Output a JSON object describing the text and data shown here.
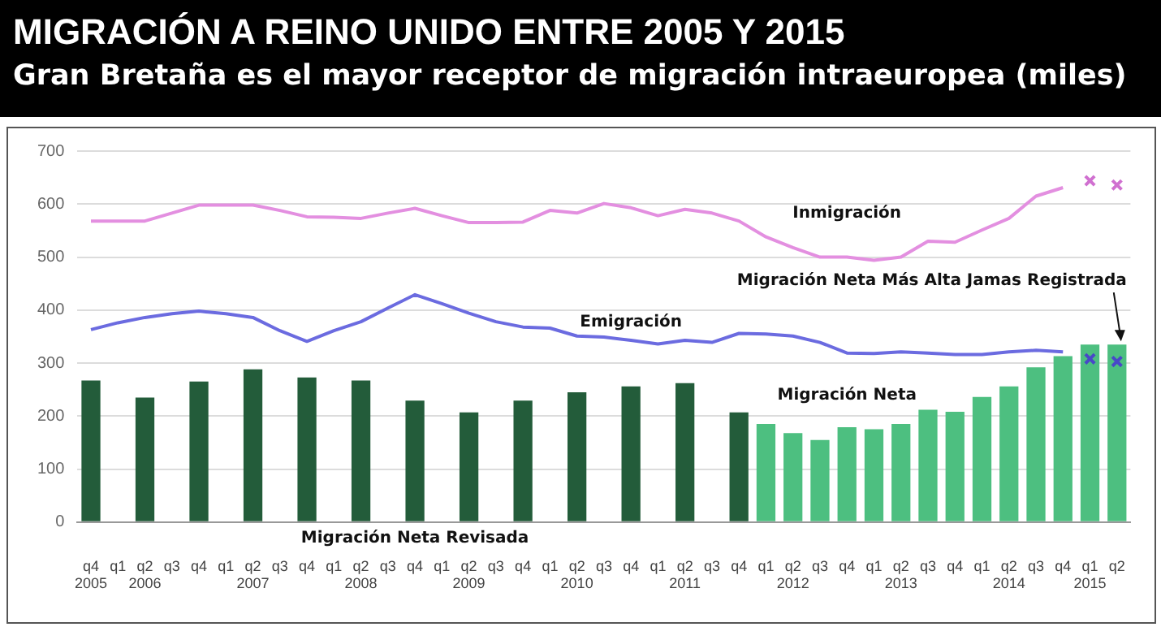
{
  "chart_data": {
    "type": "bar",
    "title": "MIGRACIÓN A REINO UNIDO ENTRE 2005 Y 2015",
    "subtitle": "Gran Bretaña es el mayor receptor de migración intraeuropea (miles)",
    "categories": [
      "q4\n2005",
      "q1",
      "q2\n2006",
      "q3",
      "q4",
      "q1",
      "q2\n2007",
      "q3",
      "q4",
      "q1",
      "q2\n2008",
      "q3",
      "q4",
      "q1",
      "q2\n2009",
      "q3",
      "q4",
      "q1",
      "q2\n2010",
      "q3",
      "q4",
      "q1",
      "q2\n2011",
      "q3",
      "q4",
      "q1",
      "q2\n2012",
      "q3",
      "q4",
      "q1",
      "q2\n2013",
      "q3",
      "q4",
      "q1",
      "q2\n2014",
      "q3",
      "q4",
      "q1\n2015",
      "q2"
    ],
    "series": [
      {
        "name": "Migración Neta Revisada",
        "color": "#235c3a",
        "values": [
          267,
          null,
          235,
          null,
          265,
          null,
          288,
          null,
          273,
          null,
          267,
          null,
          229,
          null,
          207,
          null,
          229,
          null,
          245,
          null,
          256,
          null,
          262,
          null,
          207,
          null,
          null,
          null,
          null,
          null,
          null,
          null,
          null,
          null,
          null,
          null,
          null,
          null,
          null
        ]
      },
      {
        "name": "Migración Neta",
        "color": "#4dbf80",
        "values": [
          null,
          null,
          null,
          null,
          null,
          null,
          null,
          null,
          null,
          null,
          null,
          null,
          null,
          null,
          null,
          null,
          null,
          null,
          null,
          null,
          null,
          null,
          null,
          null,
          null,
          185,
          168,
          155,
          179,
          175,
          185,
          212,
          208,
          236,
          256,
          292,
          313,
          335,
          335
        ]
      },
      {
        "name": "Inmigración",
        "type": "line",
        "color": "#e38fe0",
        "values": [
          568,
          568,
          568,
          583,
          598,
          598,
          598,
          588,
          576,
          575,
          573,
          583,
          592,
          578,
          565,
          565,
          566,
          588,
          583,
          601,
          593,
          578,
          590,
          583,
          568,
          538,
          518,
          500,
          500,
          494,
          500,
          530,
          528,
          551,
          573,
          615,
          631,
          null,
          null
        ]
      },
      {
        "name": "Emigración",
        "type": "line",
        "color": "#6b6be0",
        "values": [
          363,
          376,
          386,
          393,
          398,
          393,
          386,
          361,
          341,
          361,
          378,
          404,
          429,
          412,
          394,
          378,
          368,
          366,
          351,
          349,
          343,
          336,
          343,
          339,
          356,
          355,
          351,
          339,
          319,
          318,
          321,
          319,
          316,
          316,
          321,
          324,
          321,
          null,
          null
        ]
      },
      {
        "type": "scatter",
        "marker": "cross",
        "color": "#d070d0",
        "values": [
          null,
          null,
          null,
          null,
          null,
          null,
          null,
          null,
          null,
          null,
          null,
          null,
          null,
          null,
          null,
          null,
          null,
          null,
          null,
          null,
          null,
          null,
          null,
          null,
          null,
          null,
          null,
          null,
          null,
          null,
          null,
          null,
          null,
          null,
          null,
          null,
          null,
          644,
          636
        ]
      },
      {
        "type": "scatter",
        "marker": "cross",
        "color": "#4848c8",
        "values": [
          null,
          null,
          null,
          null,
          null,
          null,
          null,
          null,
          null,
          null,
          null,
          null,
          null,
          null,
          null,
          null,
          null,
          null,
          null,
          null,
          null,
          null,
          null,
          null,
          null,
          null,
          null,
          null,
          null,
          null,
          null,
          null,
          null,
          null,
          null,
          null,
          null,
          308,
          303
        ]
      }
    ],
    "ylim": [
      0,
      700
    ],
    "yticks": [
      0,
      100,
      200,
      300,
      400,
      500,
      600,
      700
    ],
    "grid": "y",
    "legend": false,
    "annotations": [
      {
        "text": "Migración Neta Más Alta Jamas Registrada",
        "x": "q2",
        "y": 335
      }
    ]
  }
}
